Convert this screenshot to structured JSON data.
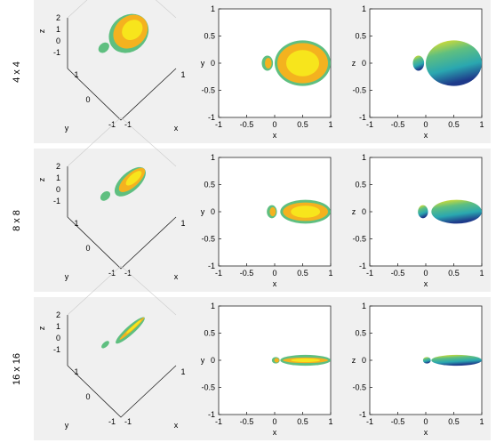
{
  "rows": [
    {
      "label": "4 x 4"
    },
    {
      "label": "8 x 8"
    },
    {
      "label": "16 x 16"
    }
  ],
  "chart_data": {
    "type": "scatter",
    "description_axes": {
      "plot_3d": {
        "xlabel": "x",
        "ylabel": "y",
        "zlabel": "z",
        "x_ticks": [
          "-1",
          "1"
        ],
        "y_ticks": [
          "1",
          "0",
          "-1"
        ],
        "z_ticks": [
          "2",
          "1",
          "0",
          "-1"
        ]
      },
      "plot_2d": {
        "xlabel": "x",
        "ylabel": "y",
        "xlim": [
          -1,
          1
        ],
        "ylim": [
          -1,
          1
        ],
        "x_ticks": [
          "-1",
          "-0.5",
          "0",
          "0.5",
          "1"
        ],
        "y_ticks": [
          "1",
          "0.5",
          "0",
          "-0.5",
          "-1"
        ]
      },
      "plot_2d_right": {
        "xlabel": "x",
        "ylabel": "z",
        "xlim": [
          -1,
          1
        ],
        "ylim": [
          -1,
          1
        ],
        "x_ticks": [
          "-1",
          "-0.5",
          "0",
          "0.5",
          "1"
        ],
        "y_ticks": [
          "1",
          "0.5",
          "0",
          "-0.5",
          "-1"
        ]
      }
    },
    "patterns": [
      {
        "array": "4 x 4",
        "main_lobe_center": 0.5,
        "main_lobe_half_length": 0.5,
        "main_lobe_half_width": 0.42,
        "side_lobe_center": -0.13,
        "side_lobe_half_length": 0.1,
        "side_lobe_half_width": 0.14
      },
      {
        "array": "8 x 8",
        "main_lobe_center": 0.55,
        "main_lobe_half_length": 0.45,
        "main_lobe_half_width": 0.22,
        "side_lobe_center": -0.05,
        "side_lobe_half_length": 0.09,
        "side_lobe_half_width": 0.12
      },
      {
        "array": "16 x 16",
        "main_lobe_center": 0.55,
        "main_lobe_half_length": 0.45,
        "main_lobe_half_width": 0.1,
        "side_lobe_center": 0.02,
        "side_lobe_half_length": 0.07,
        "side_lobe_half_width": 0.06
      }
    ],
    "colors": {
      "yellow": "#f7e51c",
      "orange": "#f4b21f",
      "green": "#5fbf80",
      "teal": "#2aa7b0",
      "blue": "#2c4fa8",
      "navy": "#1e3a8a"
    }
  }
}
